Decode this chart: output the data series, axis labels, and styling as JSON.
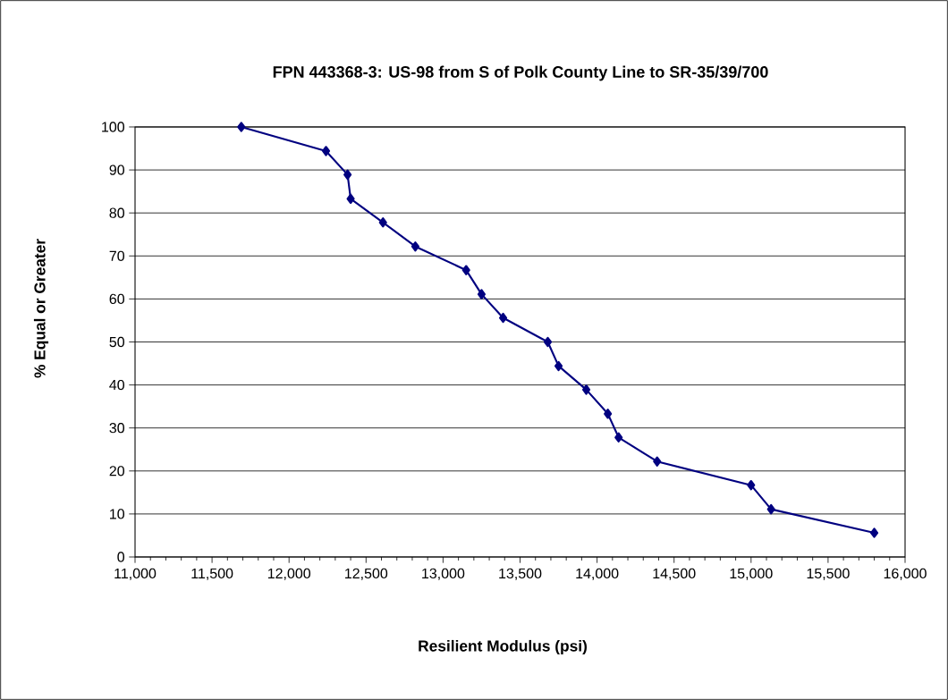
{
  "chart_data": {
    "type": "line",
    "title": "FPN 443368-3: US-98 from S of Polk County Line to SR-35/39/700",
    "xlabel": "Resilient Modulus (psi)",
    "ylabel": "% Equal or Greater",
    "x": [
      11690,
      12240,
      12380,
      12400,
      12610,
      12820,
      13150,
      13250,
      13390,
      13680,
      13750,
      13930,
      14070,
      14140,
      14390,
      15000,
      15130,
      15800
    ],
    "values": [
      100,
      94.4,
      88.9,
      83.3,
      77.8,
      72.2,
      66.7,
      61.1,
      55.6,
      50,
      44.4,
      38.9,
      33.3,
      27.8,
      22.2,
      16.7,
      11.1,
      5.6
    ],
    "color": "#000080",
    "marker": "diamond",
    "line_style": "solid",
    "grid": "y",
    "xlim": [
      11000,
      16000
    ],
    "xticks": [
      {
        "value": 11000,
        "label": "11,000"
      },
      {
        "value": 11500,
        "label": "11,500"
      },
      {
        "value": 12000,
        "label": "12,000"
      },
      {
        "value": 12500,
        "label": "12,500"
      },
      {
        "value": 13000,
        "label": "13,000"
      },
      {
        "value": 13500,
        "label": "13,500"
      },
      {
        "value": 14000,
        "label": "14,000"
      },
      {
        "value": 14500,
        "label": "14,500"
      },
      {
        "value": 15000,
        "label": "15,000"
      },
      {
        "value": 15500,
        "label": "15,500"
      },
      {
        "value": 16000,
        "label": "16,000"
      }
    ],
    "ylim": [
      0,
      100
    ],
    "yticks": [
      0,
      10,
      20,
      30,
      40,
      50,
      60,
      70,
      80,
      90,
      100
    ]
  }
}
